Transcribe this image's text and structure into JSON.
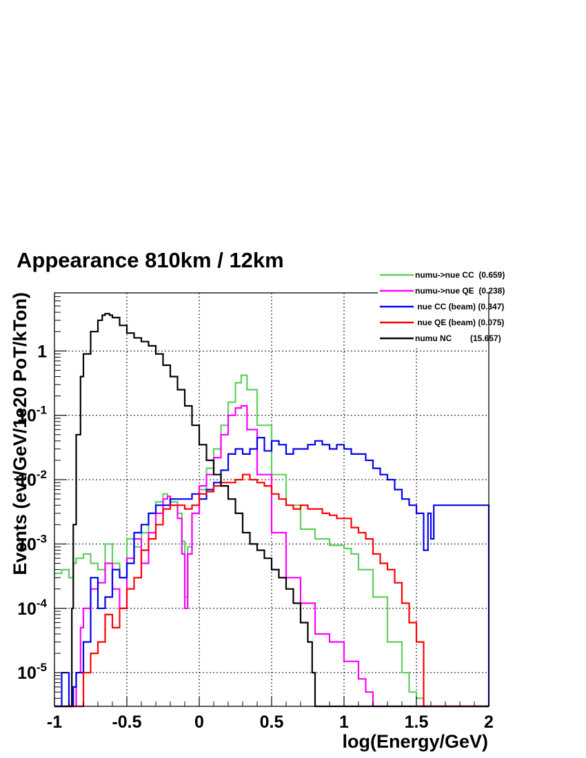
{
  "chart_data": {
    "type": "line",
    "title": "Appearance 810km / 12km",
    "xlabel": "log(Energy/GeV)",
    "ylabel": "Events (evt/GeV/1e20 PoT/kTon)",
    "xlim": [
      -1,
      2
    ],
    "ylim": [
      3e-06,
      8
    ],
    "yscale": "log",
    "grid": true,
    "legend_position": "top-right",
    "x_ticks": [
      {
        "value": -1,
        "label": "-1"
      },
      {
        "value": -0.5,
        "label": "-0.5"
      },
      {
        "value": 0,
        "label": "0"
      },
      {
        "value": 0.5,
        "label": "0.5"
      },
      {
        "value": 1,
        "label": "1"
      },
      {
        "value": 1.5,
        "label": "1.5"
      },
      {
        "value": 2,
        "label": "2"
      }
    ],
    "y_ticks": [
      {
        "value": 1e-05,
        "base": "10",
        "exp": "-5"
      },
      {
        "value": 0.0001,
        "base": "10",
        "exp": "-4"
      },
      {
        "value": 0.001,
        "base": "10",
        "exp": "-3"
      },
      {
        "value": 0.01,
        "base": "10",
        "exp": "-2"
      },
      {
        "value": 0.1,
        "base": "10",
        "exp": "-1"
      },
      {
        "value": 1,
        "base": "1",
        "exp": ""
      }
    ],
    "series": [
      {
        "name": "numu->nue CC  (0.659)",
        "color": "#5ecf5e",
        "x": [
          -1.0,
          -0.95,
          -0.9,
          -0.87,
          -0.85,
          -0.8,
          -0.75,
          -0.7,
          -0.65,
          -0.6,
          -0.55,
          -0.5,
          -0.45,
          -0.4,
          -0.35,
          -0.3,
          -0.25,
          -0.22,
          -0.2,
          -0.15,
          -0.12,
          -0.1,
          -0.08,
          -0.05,
          0.0,
          0.05,
          0.1,
          0.15,
          0.2,
          0.25,
          0.29,
          0.33,
          0.4,
          0.5,
          0.6,
          0.7,
          0.8,
          0.9,
          1.0,
          1.05,
          1.1,
          1.2,
          1.3,
          1.4,
          1.45,
          1.5,
          1.55,
          1.6,
          1.62,
          2.0
        ],
        "y": [
          0.00035,
          0.0004,
          0.0003,
          0.0005,
          0.0006,
          0.0007,
          0.0005,
          0.0004,
          0.001,
          0.0005,
          0.0003,
          0.0012,
          0.0009,
          0.0015,
          0.003,
          0.0045,
          0.006,
          0.0055,
          0.0045,
          0.003,
          0.0011,
          0.00015,
          0.0009,
          0.003,
          0.007,
          0.015,
          0.03,
          0.07,
          0.16,
          0.32,
          0.42,
          0.25,
          0.07,
          0.012,
          0.004,
          0.0017,
          0.0012,
          0.00095,
          0.00085,
          0.0007,
          0.0004,
          0.00015,
          3e-05,
          1e-05,
          5e-06,
          4e-06,
          3e-06,
          3e-06,
          3e-06,
          3e-06
        ]
      },
      {
        "name": "numu->nue QE  (0.238)",
        "color": "#ff00ff",
        "x": [
          -1.0,
          -0.9,
          -0.85,
          -0.82,
          -0.8,
          -0.75,
          -0.7,
          -0.65,
          -0.6,
          -0.55,
          -0.5,
          -0.45,
          -0.4,
          -0.35,
          -0.3,
          -0.25,
          -0.22,
          -0.2,
          -0.15,
          -0.12,
          -0.1,
          -0.08,
          -0.05,
          0.0,
          0.05,
          0.1,
          0.15,
          0.2,
          0.25,
          0.29,
          0.33,
          0.4,
          0.5,
          0.6,
          0.7,
          0.8,
          0.9,
          1.0,
          1.1,
          1.15,
          1.2,
          1.25,
          1.3,
          2.0
        ],
        "y": [
          3e-06,
          3e-06,
          1e-05,
          5e-05,
          0.0001,
          0.0002,
          0.00025,
          0.0005,
          0.0002,
          0.0001,
          0.0006,
          0.0012,
          0.0005,
          0.0015,
          0.003,
          0.005,
          0.0055,
          0.004,
          0.0025,
          0.0007,
          0.0001,
          0.0007,
          0.003,
          0.008,
          0.012,
          0.022,
          0.05,
          0.1,
          0.13,
          0.14,
          0.06,
          0.012,
          0.0015,
          0.0003,
          0.00012,
          4e-05,
          3e-05,
          1.5e-05,
          8e-06,
          5e-06,
          3e-06,
          3e-06,
          3e-06,
          3e-06
        ]
      },
      {
        "name": " nue CC (beam) (0.347)",
        "color": "#0000ee",
        "x": [
          -1.0,
          -0.95,
          -0.9,
          -0.87,
          -0.85,
          -0.8,
          -0.75,
          -0.7,
          -0.65,
          -0.6,
          -0.55,
          -0.5,
          -0.45,
          -0.4,
          -0.35,
          -0.3,
          -0.25,
          -0.2,
          -0.15,
          -0.1,
          -0.05,
          0.0,
          0.05,
          0.1,
          0.15,
          0.2,
          0.25,
          0.3,
          0.35,
          0.4,
          0.45,
          0.5,
          0.55,
          0.6,
          0.65,
          0.7,
          0.75,
          0.8,
          0.85,
          0.9,
          0.95,
          1.0,
          1.05,
          1.1,
          1.15,
          1.2,
          1.25,
          1.3,
          1.35,
          1.4,
          1.45,
          1.5,
          1.55,
          1.58,
          1.6,
          1.62,
          2.0
        ],
        "y": [
          3e-06,
          1e-05,
          3e-06,
          6e-06,
          1e-05,
          3e-05,
          0.0003,
          0.0001,
          0.00015,
          0.0004,
          0.0003,
          0.0005,
          0.0015,
          0.002,
          0.003,
          0.004,
          0.004,
          0.005,
          0.005,
          0.005,
          0.006,
          0.005,
          0.007,
          0.009,
          0.014,
          0.025,
          0.03,
          0.025,
          0.03,
          0.045,
          0.028,
          0.04,
          0.035,
          0.025,
          0.03,
          0.03,
          0.035,
          0.04,
          0.035,
          0.03,
          0.035,
          0.03,
          0.025,
          0.025,
          0.02,
          0.015,
          0.012,
          0.01,
          0.007,
          0.005,
          0.004,
          0.003,
          0.0008,
          0.003,
          0.0012,
          0.004,
          3e-06
        ]
      },
      {
        "name": " nue QE (beam) (0.075)",
        "color": "#ff0000",
        "x": [
          -1.0,
          -0.85,
          -0.8,
          -0.75,
          -0.7,
          -0.65,
          -0.6,
          -0.55,
          -0.5,
          -0.45,
          -0.4,
          -0.35,
          -0.3,
          -0.25,
          -0.2,
          -0.15,
          -0.1,
          -0.05,
          0.0,
          0.05,
          0.1,
          0.15,
          0.2,
          0.25,
          0.3,
          0.35,
          0.4,
          0.45,
          0.5,
          0.55,
          0.6,
          0.65,
          0.7,
          0.75,
          0.8,
          0.85,
          0.9,
          0.95,
          1.0,
          1.05,
          1.1,
          1.15,
          1.2,
          1.25,
          1.3,
          1.35,
          1.4,
          1.45,
          1.5,
          1.55,
          2.0
        ],
        "y": [
          3e-06,
          3e-06,
          1e-05,
          2e-05,
          3e-05,
          8e-05,
          5e-05,
          0.0001,
          0.0002,
          0.0003,
          0.0008,
          0.0012,
          0.002,
          0.0035,
          0.004,
          0.004,
          0.0035,
          0.004,
          0.006,
          0.0065,
          0.008,
          0.009,
          0.009,
          0.01,
          0.012,
          0.01,
          0.009,
          0.008,
          0.006,
          0.005,
          0.004,
          0.0035,
          0.004,
          0.0035,
          0.0035,
          0.003,
          0.0028,
          0.0025,
          0.0025,
          0.0018,
          0.0015,
          0.0012,
          0.0007,
          0.0005,
          0.0004,
          0.00025,
          0.00012,
          6e-05,
          3e-05,
          3e-06,
          3e-06
        ]
      },
      {
        "name": "numu NC        (15.657)",
        "color": "#000000",
        "x": [
          -1.0,
          -0.9,
          -0.88,
          -0.87,
          -0.85,
          -0.82,
          -0.8,
          -0.75,
          -0.7,
          -0.67,
          -0.65,
          -0.62,
          -0.6,
          -0.55,
          -0.5,
          -0.45,
          -0.4,
          -0.35,
          -0.3,
          -0.25,
          -0.2,
          -0.15,
          -0.1,
          -0.05,
          0.0,
          0.05,
          0.1,
          0.15,
          0.2,
          0.25,
          0.3,
          0.35,
          0.4,
          0.45,
          0.5,
          0.55,
          0.6,
          0.65,
          0.7,
          0.75,
          0.78,
          0.8,
          2.0
        ],
        "y": [
          3e-06,
          3e-06,
          0.0001,
          0.002,
          0.05,
          0.4,
          0.9,
          2.0,
          3.0,
          3.6,
          3.8,
          3.6,
          3.3,
          2.5,
          1.9,
          1.6,
          1.4,
          1.2,
          0.9,
          0.6,
          0.4,
          0.25,
          0.14,
          0.07,
          0.035,
          0.02,
          0.012,
          0.008,
          0.005,
          0.003,
          0.0015,
          0.001,
          0.0008,
          0.0006,
          0.0004,
          0.0003,
          0.0002,
          0.00012,
          6e-05,
          3e-05,
          1e-05,
          3e-06,
          3e-06
        ]
      }
    ]
  }
}
